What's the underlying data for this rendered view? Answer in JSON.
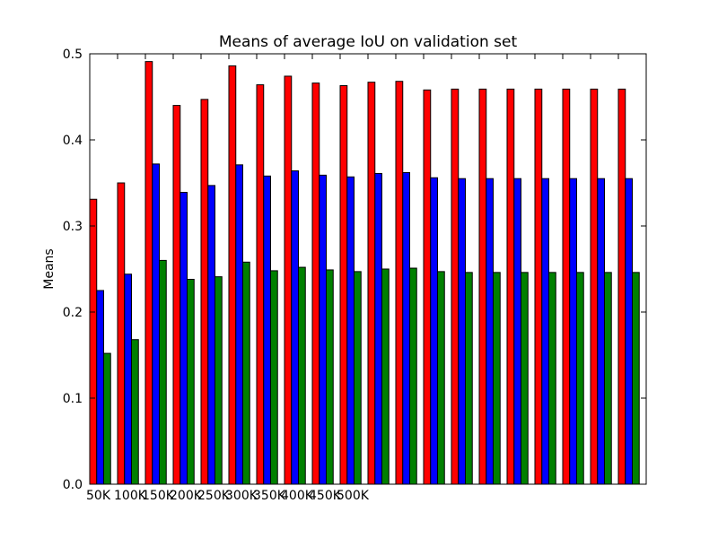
{
  "chart_data": {
    "type": "bar",
    "title": "Means of average IoU on validation set",
    "xlabel": "",
    "ylabel": "Means",
    "ylim": [
      0,
      0.5
    ],
    "yticks": [
      "0.0",
      "0.1",
      "0.2",
      "0.3",
      "0.4",
      "0.5"
    ],
    "categories": [
      "50K",
      "100K",
      "150K",
      "200K",
      "250K",
      "300K",
      "350K",
      "400K",
      "450K",
      "500K",
      "",
      "",
      "",
      "",
      "",
      "",
      "",
      "",
      "",
      ""
    ],
    "series": [
      {
        "color": "#ff0000",
        "values": [
          0.331,
          0.35,
          0.491,
          0.44,
          0.447,
          0.486,
          0.464,
          0.474,
          0.466,
          0.463,
          0.467,
          0.468,
          0.458,
          0.459,
          0.459,
          0.459,
          0.459,
          0.459,
          0.459,
          0.459
        ]
      },
      {
        "color": "#0000ff",
        "values": [
          0.225,
          0.244,
          0.372,
          0.339,
          0.347,
          0.371,
          0.358,
          0.364,
          0.359,
          0.357,
          0.361,
          0.362,
          0.356,
          0.355,
          0.355,
          0.355,
          0.355,
          0.355,
          0.355,
          0.355
        ]
      },
      {
        "color": "#008000",
        "values": [
          0.152,
          0.168,
          0.26,
          0.238,
          0.241,
          0.258,
          0.248,
          0.252,
          0.249,
          0.247,
          0.25,
          0.251,
          0.247,
          0.246,
          0.246,
          0.246,
          0.246,
          0.246,
          0.246,
          0.246
        ]
      }
    ],
    "grid": false,
    "legend": "none"
  }
}
